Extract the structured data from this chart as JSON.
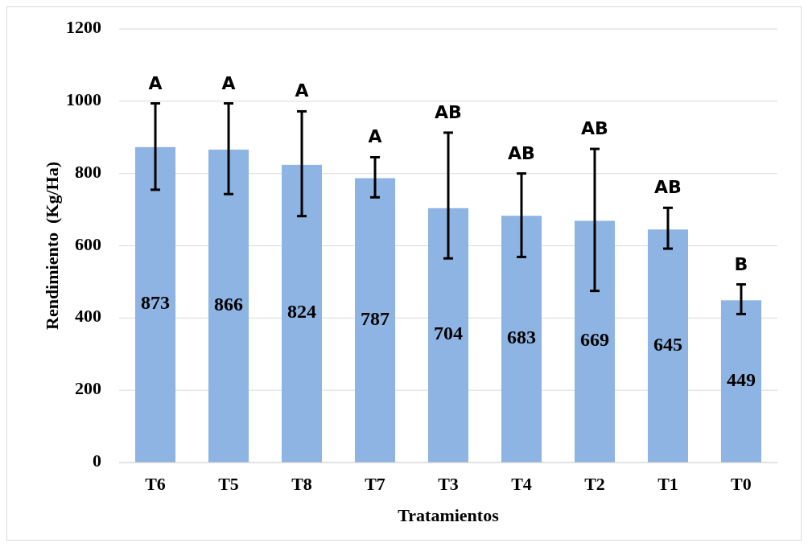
{
  "chart_data": {
    "type": "bar",
    "xlabel": "Tratamientos",
    "ylabel": "Rendimiento  (Kg/Ha)",
    "categories": [
      "T6",
      "T5",
      "T8",
      "T7",
      "T3",
      "T4",
      "T2",
      "T1",
      "T0"
    ],
    "values": [
      873,
      866,
      824,
      787,
      704,
      683,
      669,
      645,
      449
    ],
    "color": "#8db4e2",
    "errors": [
      [
        755,
        994
      ],
      [
        743,
        994
      ],
      [
        682,
        972
      ],
      [
        734,
        845
      ],
      [
        565,
        913
      ],
      [
        569,
        800
      ],
      [
        475,
        868
      ],
      [
        592,
        705
      ],
      [
        411,
        493
      ]
    ],
    "ylim": [
      0,
      1200
    ],
    "yticks": [
      0,
      200,
      400,
      600,
      800,
      1000,
      1200
    ],
    "grid": "y",
    "data_labels": true,
    "annotations": [
      {
        "text": "A",
        "x": "T6",
        "y": 994
      },
      {
        "text": "A",
        "x": "T5",
        "y": 994
      },
      {
        "text": "A",
        "x": "T8",
        "y": 972
      },
      {
        "text": "A",
        "x": "T7",
        "y": 845
      },
      {
        "text": "AB",
        "x": "T3",
        "y": 913
      },
      {
        "text": "AB",
        "x": "T4",
        "y": 800
      },
      {
        "text": "AB",
        "x": "T2",
        "y": 868
      },
      {
        "text": "AB",
        "x": "T1",
        "y": 705
      },
      {
        "text": "B",
        "x": "T0",
        "y": 493
      }
    ]
  }
}
